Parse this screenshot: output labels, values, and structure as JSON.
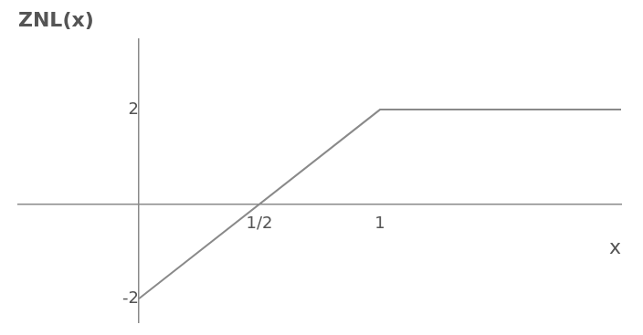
{
  "chart_data": {
    "type": "line",
    "title": "ZNL(x)",
    "x_label": "x",
    "x": [
      0,
      1,
      2
    ],
    "values": [
      -2,
      2,
      2
    ],
    "color": "#8a8a8a",
    "xlim": [
      -0.5,
      2
    ],
    "xticks": [
      {
        "value": 0.5,
        "label": "1/2"
      },
      1
    ],
    "ylim": [
      -2.5,
      3.5
    ],
    "yticks": [
      -2,
      2
    ],
    "grid": false
  }
}
